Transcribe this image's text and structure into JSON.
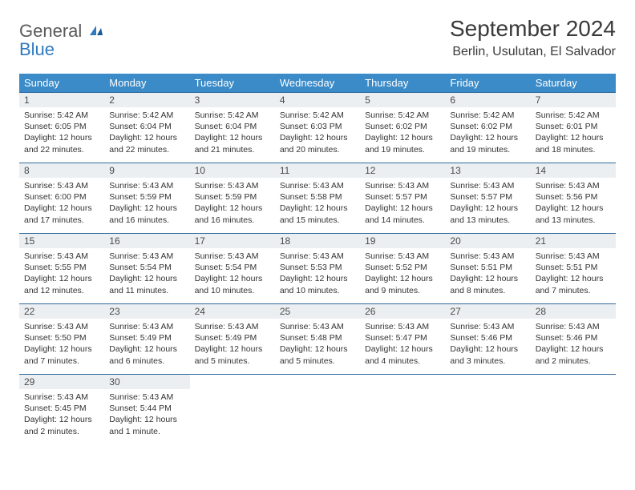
{
  "brand": {
    "part1": "General",
    "part2": "Blue"
  },
  "title": "September 2024",
  "location": "Berlin, Usulutan, El Salvador",
  "colors": {
    "header_bg": "#3b8bc8",
    "header_text": "#ffffff",
    "row_border": "#2f6a9e",
    "daynum_bg": "#eceff1",
    "text": "#333333",
    "brand_gray": "#5a5a5a",
    "brand_blue": "#2f7bbf"
  },
  "weekdays": [
    "Sunday",
    "Monday",
    "Tuesday",
    "Wednesday",
    "Thursday",
    "Friday",
    "Saturday"
  ],
  "days": [
    {
      "n": 1,
      "sr": "5:42 AM",
      "ss": "6:05 PM",
      "dl": "12 hours and 22 minutes."
    },
    {
      "n": 2,
      "sr": "5:42 AM",
      "ss": "6:04 PM",
      "dl": "12 hours and 22 minutes."
    },
    {
      "n": 3,
      "sr": "5:42 AM",
      "ss": "6:04 PM",
      "dl": "12 hours and 21 minutes."
    },
    {
      "n": 4,
      "sr": "5:42 AM",
      "ss": "6:03 PM",
      "dl": "12 hours and 20 minutes."
    },
    {
      "n": 5,
      "sr": "5:42 AM",
      "ss": "6:02 PM",
      "dl": "12 hours and 19 minutes."
    },
    {
      "n": 6,
      "sr": "5:42 AM",
      "ss": "6:02 PM",
      "dl": "12 hours and 19 minutes."
    },
    {
      "n": 7,
      "sr": "5:42 AM",
      "ss": "6:01 PM",
      "dl": "12 hours and 18 minutes."
    },
    {
      "n": 8,
      "sr": "5:43 AM",
      "ss": "6:00 PM",
      "dl": "12 hours and 17 minutes."
    },
    {
      "n": 9,
      "sr": "5:43 AM",
      "ss": "5:59 PM",
      "dl": "12 hours and 16 minutes."
    },
    {
      "n": 10,
      "sr": "5:43 AM",
      "ss": "5:59 PM",
      "dl": "12 hours and 16 minutes."
    },
    {
      "n": 11,
      "sr": "5:43 AM",
      "ss": "5:58 PM",
      "dl": "12 hours and 15 minutes."
    },
    {
      "n": 12,
      "sr": "5:43 AM",
      "ss": "5:57 PM",
      "dl": "12 hours and 14 minutes."
    },
    {
      "n": 13,
      "sr": "5:43 AM",
      "ss": "5:57 PM",
      "dl": "12 hours and 13 minutes."
    },
    {
      "n": 14,
      "sr": "5:43 AM",
      "ss": "5:56 PM",
      "dl": "12 hours and 13 minutes."
    },
    {
      "n": 15,
      "sr": "5:43 AM",
      "ss": "5:55 PM",
      "dl": "12 hours and 12 minutes."
    },
    {
      "n": 16,
      "sr": "5:43 AM",
      "ss": "5:54 PM",
      "dl": "12 hours and 11 minutes."
    },
    {
      "n": 17,
      "sr": "5:43 AM",
      "ss": "5:54 PM",
      "dl": "12 hours and 10 minutes."
    },
    {
      "n": 18,
      "sr": "5:43 AM",
      "ss": "5:53 PM",
      "dl": "12 hours and 10 minutes."
    },
    {
      "n": 19,
      "sr": "5:43 AM",
      "ss": "5:52 PM",
      "dl": "12 hours and 9 minutes."
    },
    {
      "n": 20,
      "sr": "5:43 AM",
      "ss": "5:51 PM",
      "dl": "12 hours and 8 minutes."
    },
    {
      "n": 21,
      "sr": "5:43 AM",
      "ss": "5:51 PM",
      "dl": "12 hours and 7 minutes."
    },
    {
      "n": 22,
      "sr": "5:43 AM",
      "ss": "5:50 PM",
      "dl": "12 hours and 7 minutes."
    },
    {
      "n": 23,
      "sr": "5:43 AM",
      "ss": "5:49 PM",
      "dl": "12 hours and 6 minutes."
    },
    {
      "n": 24,
      "sr": "5:43 AM",
      "ss": "5:49 PM",
      "dl": "12 hours and 5 minutes."
    },
    {
      "n": 25,
      "sr": "5:43 AM",
      "ss": "5:48 PM",
      "dl": "12 hours and 5 minutes."
    },
    {
      "n": 26,
      "sr": "5:43 AM",
      "ss": "5:47 PM",
      "dl": "12 hours and 4 minutes."
    },
    {
      "n": 27,
      "sr": "5:43 AM",
      "ss": "5:46 PM",
      "dl": "12 hours and 3 minutes."
    },
    {
      "n": 28,
      "sr": "5:43 AM",
      "ss": "5:46 PM",
      "dl": "12 hours and 2 minutes."
    },
    {
      "n": 29,
      "sr": "5:43 AM",
      "ss": "5:45 PM",
      "dl": "12 hours and 2 minutes."
    },
    {
      "n": 30,
      "sr": "5:43 AM",
      "ss": "5:44 PM",
      "dl": "12 hours and 1 minute."
    }
  ],
  "labels": {
    "sunrise": "Sunrise:",
    "sunset": "Sunset:",
    "daylight": "Daylight:"
  },
  "layout": {
    "start_weekday": 0,
    "total_cells": 35
  }
}
